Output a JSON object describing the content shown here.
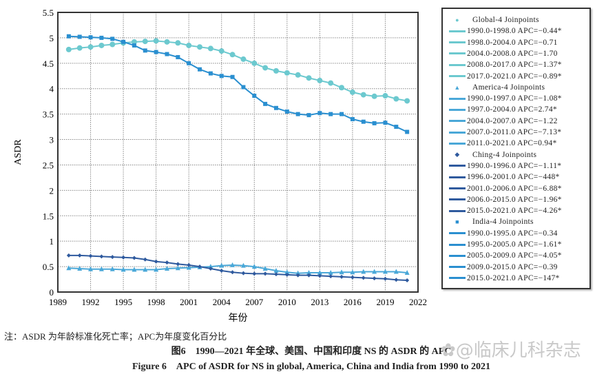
{
  "chart_data": {
    "type": "line",
    "ylabel": "ASDR",
    "xlabel": "年份",
    "xlim": [
      1989,
      2022
    ],
    "ylim": [
      0,
      5.5
    ],
    "xticks": [
      "1989",
      "1992",
      "1995",
      "1998",
      "2001",
      "2004",
      "2007",
      "2010",
      "2013",
      "2016",
      "2019",
      "2022"
    ],
    "yticks": [
      "0",
      "0.5",
      "1",
      "1.5",
      "2",
      "2.5",
      "3",
      "3.5",
      "4",
      "4.5",
      "5",
      "5.5"
    ],
    "grid": true,
    "legend_position": "right",
    "x": [
      1990,
      1991,
      1992,
      1993,
      1994,
      1995,
      1996,
      1997,
      1998,
      1999,
      2000,
      2001,
      2002,
      2003,
      2004,
      2005,
      2006,
      2007,
      2008,
      2009,
      2010,
      2011,
      2012,
      2013,
      2014,
      2015,
      2016,
      2017,
      2018,
      2019,
      2020,
      2021
    ],
    "series": [
      {
        "name": "Global-4 Joinpoints",
        "marker": "circle",
        "color": "#6cc9cf",
        "values": [
          4.77,
          4.8,
          4.82,
          4.85,
          4.87,
          4.9,
          4.92,
          4.93,
          4.94,
          4.92,
          4.9,
          4.85,
          4.82,
          4.79,
          4.74,
          4.67,
          4.58,
          4.5,
          4.41,
          4.35,
          4.31,
          4.27,
          4.21,
          4.16,
          4.11,
          4.02,
          3.93,
          3.88,
          3.85,
          3.86,
          3.8,
          3.76
        ],
        "segments": [
          "1990.0-1998.0 APC=−0.44*",
          "1998.0-2004.0 APC=−0.71",
          "2004.0-2008.0 APC=−1.70",
          "2008.0-2017.0 APC=−1.37*",
          "2017.0-2021.0 APC=−0.89*"
        ]
      },
      {
        "name": "America-4 Joinpoints",
        "marker": "triangle",
        "color": "#4aa8d8",
        "values": [
          0.47,
          0.46,
          0.45,
          0.45,
          0.45,
          0.44,
          0.44,
          0.44,
          0.44,
          0.46,
          0.47,
          0.48,
          0.49,
          0.5,
          0.52,
          0.53,
          0.52,
          0.5,
          0.46,
          0.42,
          0.39,
          0.37,
          0.38,
          0.38,
          0.38,
          0.39,
          0.39,
          0.4,
          0.4,
          0.4,
          0.4,
          0.38
        ],
        "segments": [
          "1990.0-1997.0 APC=−1.08*",
          "1997.0-2004.0 APC=2.74*",
          "2004.0-2007.0 APC=−1.22",
          "2007.0-2011.0 APC=−7.13*",
          "2011.0-2021.0 APC=0.94*"
        ]
      },
      {
        "name": "Ching-4 Joinpoints",
        "marker": "diamond",
        "color": "#2f5a9e",
        "values": [
          0.72,
          0.72,
          0.71,
          0.7,
          0.69,
          0.68,
          0.67,
          0.64,
          0.6,
          0.58,
          0.55,
          0.53,
          0.5,
          0.46,
          0.42,
          0.39,
          0.37,
          0.36,
          0.36,
          0.35,
          0.34,
          0.33,
          0.33,
          0.32,
          0.31,
          0.3,
          0.29,
          0.28,
          0.27,
          0.26,
          0.24,
          0.23
        ],
        "segments": [
          "1990.0-1996.0 APC=−1.11*",
          "1996.0-2001.0 APC=−448*",
          "2001.0-2006.0 APC=−6.88*",
          "2006.0-2015.0 APC=−1.96*",
          "2015.0-2021.0 APC=−4.26*"
        ]
      },
      {
        "name": "India-4 Joinpoints",
        "marker": "square",
        "color": "#2a8fd0",
        "values": [
          5.03,
          5.02,
          5.01,
          5.0,
          4.98,
          4.92,
          4.85,
          4.75,
          4.72,
          4.68,
          4.62,
          4.5,
          4.38,
          4.3,
          4.25,
          4.23,
          4.03,
          3.86,
          3.7,
          3.62,
          3.55,
          3.5,
          3.48,
          3.52,
          3.5,
          3.5,
          3.4,
          3.35,
          3.32,
          3.33,
          3.25,
          3.15
        ],
        "segments": [
          "1990.0-1995.0 APC=−0.34",
          "1995.0-2005.0 APC=−1.61*",
          "2005.0-2009.0 APC=−4.05*",
          "2009.0-2015.0 APC=−0.39",
          "2015.0-2021.0 APC=−147*"
        ]
      }
    ]
  },
  "note": "注：ASDR 为年龄标准化死亡率；APC为年度变化百分比",
  "caption_cn": "图6　1990—2021 年全球、美国、中国和印度 NS 的 ASDR 的 APC",
  "caption_en": "Figure 6　APC of ASDR for NS in global, America, China and India from 1990 to 2021",
  "watermark": "@临床儿科杂志"
}
